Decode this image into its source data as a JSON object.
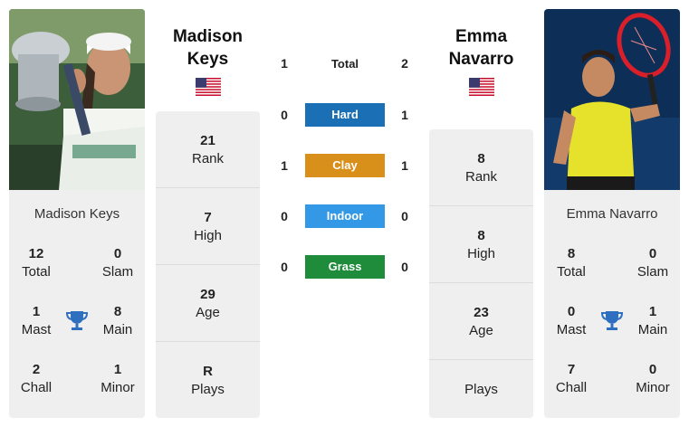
{
  "colors": {
    "hard": "#1a6fb5",
    "clay": "#d9901a",
    "indoor": "#3399e6",
    "grass": "#1e8c3a",
    "card_bg": "#efefef",
    "trophy": "#2f6fc0"
  },
  "player1": {
    "name_first": "Madison",
    "name_last": "Keys",
    "card_name": "Madison Keys",
    "flag": "us-flag-icon",
    "titles": {
      "total_value": "12",
      "total_label": "Total",
      "slam_value": "0",
      "slam_label": "Slam",
      "mast_value": "1",
      "mast_label": "Mast",
      "main_value": "8",
      "main_label": "Main",
      "chall_value": "2",
      "chall_label": "Chall",
      "minor_value": "1",
      "minor_label": "Minor"
    },
    "rank_value": "21",
    "rank_label": "Rank",
    "high_value": "7",
    "high_label": "High",
    "age_value": "29",
    "age_label": "Age",
    "plays_value": "R",
    "plays_label": "Plays"
  },
  "player2": {
    "name_first": "Emma",
    "name_last": "Navarro",
    "card_name": "Emma Navarro",
    "flag": "us-flag-icon",
    "titles": {
      "total_value": "8",
      "total_label": "Total",
      "slam_value": "0",
      "slam_label": "Slam",
      "mast_value": "0",
      "mast_label": "Mast",
      "main_value": "1",
      "main_label": "Main",
      "chall_value": "7",
      "chall_label": "Chall",
      "minor_value": "0",
      "minor_label": "Minor"
    },
    "rank_value": "8",
    "rank_label": "Rank",
    "high_value": "8",
    "high_label": "High",
    "age_value": "23",
    "age_label": "Age",
    "plays_value": "",
    "plays_label": "Plays"
  },
  "h2h": {
    "total": {
      "label": "Total",
      "p1": "1",
      "p2": "2"
    },
    "hard": {
      "label": "Hard",
      "p1": "0",
      "p2": "1"
    },
    "clay": {
      "label": "Clay",
      "p1": "1",
      "p2": "1"
    },
    "indoor": {
      "label": "Indoor",
      "p1": "0",
      "p2": "0"
    },
    "grass": {
      "label": "Grass",
      "p1": "0",
      "p2": "0"
    }
  }
}
